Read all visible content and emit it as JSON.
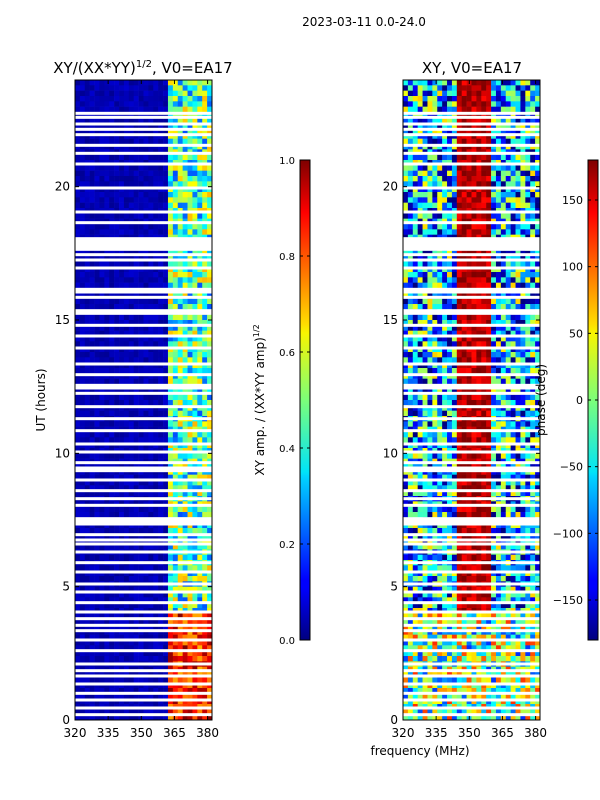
{
  "suptitle": "2023-03-11 0.0-24.0",
  "chart_data": [
    {
      "type": "heatmap",
      "title": "XY/(XX*YY)^{1/2}, V0=EA17",
      "title_main": "XY/(XX*YY)",
      "title_sup": "1/2",
      "title_tail": ", V0=EA17",
      "xlabel": "",
      "ylabel": "UT (hours)",
      "xlim": [
        320,
        382
      ],
      "ylim": [
        0,
        24
      ],
      "xticks": [
        320,
        335,
        350,
        365,
        380
      ],
      "yticks": [
        0,
        5,
        10,
        15,
        20
      ],
      "band_edge_mhz": 361.5,
      "value_range": [
        0.0,
        1.0
      ],
      "typical_values": {
        "low_band": 0.05,
        "high_band": 0.45,
        "hot_hours": [
          0.0,
          4.0
        ],
        "hot_value": 0.85
      },
      "colorbar": {
        "label_main": "XY amp. / (XX*YY amp)",
        "label_sup": "1/2",
        "range": [
          0.0,
          1.0
        ],
        "ticks": [
          "0.0",
          "0.2",
          "0.4",
          "0.6",
          "0.8",
          "1.0"
        ]
      }
    },
    {
      "type": "heatmap",
      "title": "XY, V0=EA17",
      "xlabel": "frequency (MHz)",
      "ylabel": "",
      "xlim": [
        320,
        382
      ],
      "ylim": [
        0,
        24
      ],
      "xticks": [
        320,
        335,
        350,
        365,
        380
      ],
      "yticks": [
        0,
        5,
        10,
        15,
        20
      ],
      "value_range": [
        -180,
        180
      ],
      "typical_values": {
        "center_band_mhz": [
          345,
          360
        ],
        "center_value": 160,
        "outer_value": -120
      },
      "colorbar": {
        "label": "phase (deg)",
        "range": [
          -180,
          180
        ],
        "ticks": [
          "150",
          "100",
          "50",
          "0",
          "−50",
          "−100",
          "−150"
        ]
      }
    }
  ],
  "flagged_hours": [
    0.2,
    0.45,
    0.75,
    1.0,
    1.35,
    1.65,
    1.85,
    2.1,
    2.6,
    3.0,
    3.35,
    3.55,
    3.8,
    4.05,
    4.4,
    4.8,
    5.1,
    5.55,
    5.9,
    6.3,
    6.6,
    6.75,
    6.95,
    7.35,
    7.45,
    7.55,
    8.05,
    8.3,
    8.6,
    9.0,
    9.35,
    9.45,
    9.65,
    10.05,
    10.35,
    10.85,
    11.3,
    11.75,
    12.25,
    12.45,
    12.55,
    12.95,
    13.35,
    13.95,
    14.4,
    14.8,
    15.25,
    15.35,
    15.85,
    16.05,
    16.15,
    16.95,
    17.25,
    17.45,
    17.65,
    17.75,
    17.85,
    17.95,
    18.05,
    18.65,
    19.05,
    19.95,
    20.85,
    21.25,
    21.55,
    21.95,
    22.15,
    22.35,
    22.6,
    22.75
  ]
}
